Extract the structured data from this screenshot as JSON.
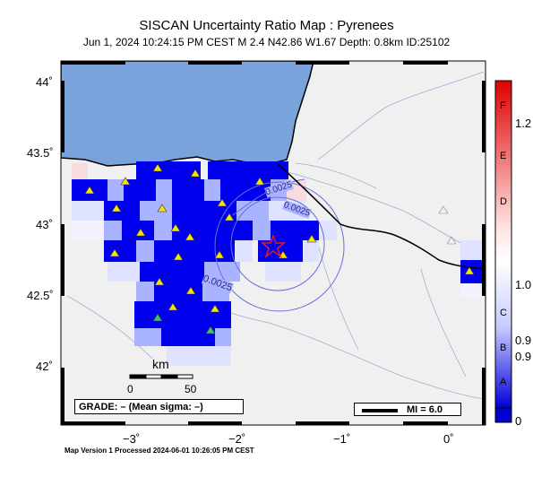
{
  "header": {
    "title": "SISCAN Uncertainty Ratio Map : Pyrenees",
    "subtitle": "Jun  1, 2024 10:24:15 PM CEST   M 2.4   N42.86 W1.67   Depth: 0.8km   ID:25102"
  },
  "axes": {
    "y_ticks": [
      "44˚",
      "43.5˚",
      "43˚",
      "42.5˚",
      "42˚"
    ],
    "x_ticks": [
      "−3˚",
      "−2˚",
      "−1˚",
      "0˚"
    ]
  },
  "contours": [
    "0.0025",
    "0.0025",
    "0.0025"
  ],
  "scale": {
    "title": "km",
    "min": "0",
    "max": "50"
  },
  "grade": {
    "text": "GRADE: – (Mean sigma: –)"
  },
  "mi": {
    "text": "MI = 6.0"
  },
  "colorbar": {
    "letters": [
      "F",
      "E",
      "D",
      "C",
      "B",
      "A"
    ],
    "values": [
      "1.2",
      "1.0",
      "0.9",
      "0.9",
      "0"
    ],
    "colors": {
      "top": "#e00000",
      "mid": "#ffffff",
      "bottom": "#0000d0"
    }
  },
  "colors": {
    "sea": "#7aa3dc",
    "land": "#f0f0f0",
    "high": "#0000ee",
    "star": "#e02020",
    "station": "#f5e400"
  },
  "footer": {
    "text": "Map Version 1 Processed 2024-06-01 10:26:05 PM CEST"
  }
}
